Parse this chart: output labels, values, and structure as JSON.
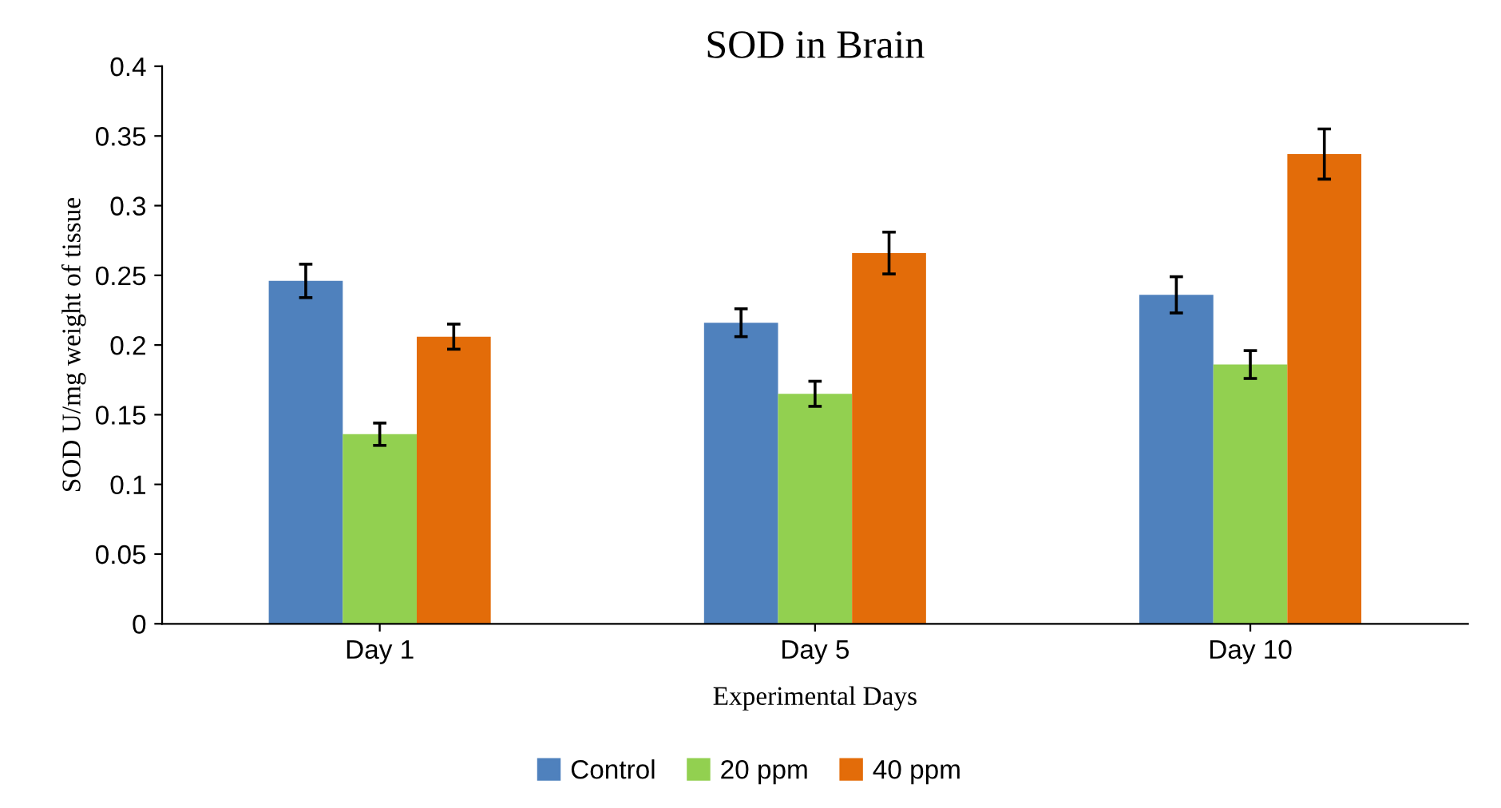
{
  "chart_data": {
    "type": "bar",
    "title": "SOD in Brain",
    "xlabel": "Experimental Days",
    "ylabel": "SOD U/mg weight of tissue",
    "categories": [
      "Day 1",
      "Day 5",
      "Day 10"
    ],
    "series": [
      {
        "name": "Control",
        "color": "#4f81bd",
        "values": [
          0.246,
          0.216,
          0.236
        ],
        "errors": [
          0.012,
          0.01,
          0.013
        ]
      },
      {
        "name": "20 ppm",
        "color": "#92d050",
        "values": [
          0.136,
          0.165,
          0.186
        ],
        "errors": [
          0.008,
          0.009,
          0.01
        ]
      },
      {
        "name": "40 ppm",
        "color": "#e36c09",
        "values": [
          0.206,
          0.266,
          0.337
        ],
        "errors": [
          0.009,
          0.015,
          0.018
        ]
      }
    ],
    "ylim": [
      0,
      0.4
    ],
    "yticks": [
      0,
      0.05,
      0.1,
      0.15,
      0.2,
      0.25,
      0.3,
      0.35,
      0.4
    ],
    "grid": false,
    "legend": "bottom"
  }
}
